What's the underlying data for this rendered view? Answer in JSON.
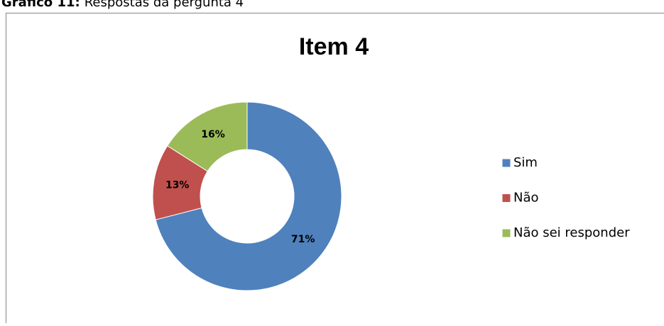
{
  "caption": {
    "label": "Gráfico 11:",
    "text": "Respostas da pergunta 4"
  },
  "chart_data": {
    "type": "donut",
    "title": "Item 4",
    "categories": [
      "Sim",
      "Não",
      "Não sei responder"
    ],
    "values": [
      71,
      13,
      16
    ],
    "value_labels": [
      "71%",
      "13%",
      "16%"
    ],
    "colors": [
      "#4f81bd",
      "#c0504d",
      "#9bbb59"
    ],
    "legend": "right"
  }
}
